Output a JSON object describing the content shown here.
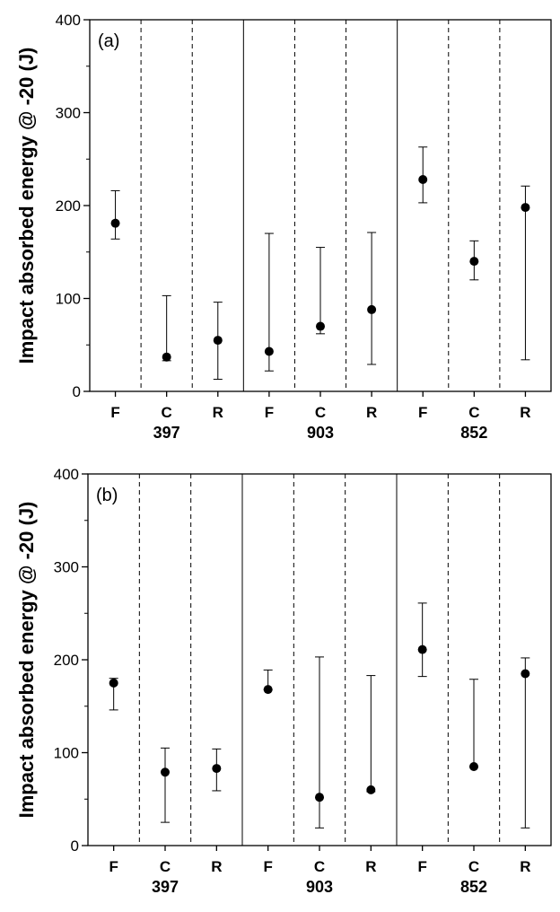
{
  "chart_data": [
    {
      "panel": "(a)",
      "type": "scatter",
      "ylabel": "Impact absorbed energy @ -20 (J)",
      "ylim": [
        0,
        400
      ],
      "yticks": [
        0,
        100,
        200,
        300,
        400
      ],
      "categories": [
        "F",
        "C",
        "R",
        "F",
        "C",
        "R",
        "F",
        "C",
        "R"
      ],
      "groups": [
        "397",
        "903",
        "852"
      ],
      "points": [
        {
          "group": "397",
          "category": "F",
          "value": 181,
          "err_low": 164,
          "err_high": 216
        },
        {
          "group": "397",
          "category": "C",
          "value": 37,
          "err_low": 33,
          "err_high": 103
        },
        {
          "group": "397",
          "category": "R",
          "value": 55,
          "err_low": 13,
          "err_high": 96
        },
        {
          "group": "903",
          "category": "F",
          "value": 43,
          "err_low": 22,
          "err_high": 170
        },
        {
          "group": "903",
          "category": "C",
          "value": 70,
          "err_low": 62,
          "err_high": 155
        },
        {
          "group": "903",
          "category": "R",
          "value": 88,
          "err_low": 29,
          "err_high": 171
        },
        {
          "group": "852",
          "category": "F",
          "value": 228,
          "err_low": 203,
          "err_high": 263
        },
        {
          "group": "852",
          "category": "C",
          "value": 140,
          "err_low": 120,
          "err_high": 162
        },
        {
          "group": "852",
          "category": "R",
          "value": 198,
          "err_low": 34,
          "err_high": 221
        }
      ]
    },
    {
      "panel": "(b)",
      "type": "scatter",
      "ylabel": "Impact absorbed energy @ -20 (J)",
      "ylim": [
        0,
        400
      ],
      "yticks": [
        0,
        100,
        200,
        300,
        400
      ],
      "categories": [
        "F",
        "C",
        "R",
        "F",
        "C",
        "R",
        "F",
        "C",
        "R"
      ],
      "groups": [
        "397",
        "903",
        "852"
      ],
      "points": [
        {
          "group": "397",
          "category": "F",
          "value": 175,
          "err_low": 146,
          "err_high": 180
        },
        {
          "group": "397",
          "category": "C",
          "value": 79,
          "err_low": 25,
          "err_high": 105
        },
        {
          "group": "397",
          "category": "R",
          "value": 83,
          "err_low": 59,
          "err_high": 104
        },
        {
          "group": "903",
          "category": "F",
          "value": 168,
          "err_low": 168,
          "err_high": 189
        },
        {
          "group": "903",
          "category": "C",
          "value": 52,
          "err_low": 19,
          "err_high": 203
        },
        {
          "group": "903",
          "category": "R",
          "value": 60,
          "err_low": 58,
          "err_high": 183
        },
        {
          "group": "852",
          "category": "F",
          "value": 211,
          "err_low": 182,
          "err_high": 261
        },
        {
          "group": "852",
          "category": "C",
          "value": 85,
          "err_low": 85,
          "err_high": 179
        },
        {
          "group": "852",
          "category": "R",
          "value": 185,
          "err_low": 19,
          "err_high": 202
        }
      ]
    }
  ]
}
